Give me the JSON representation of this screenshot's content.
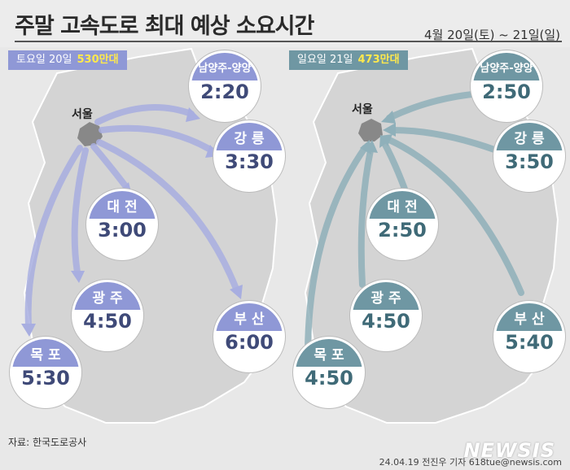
{
  "title": "주말 고속도로 최대 예상 소요시간",
  "date": "4월 20일(토) ~ 21일(일)",
  "saturday": {
    "banner_label": "토요일 20일",
    "banner_value": "530만대",
    "color": "#8f98d6",
    "origin": "서울",
    "destinations": [
      {
        "name": "남양주-양양",
        "time": "2:20"
      },
      {
        "name": "강 릉",
        "time": "3:30"
      },
      {
        "name": "대 전",
        "time": "3:00"
      },
      {
        "name": "광 주",
        "time": "4:50"
      },
      {
        "name": "부 산",
        "time": "6:00"
      },
      {
        "name": "목 포",
        "time": "5:30"
      }
    ]
  },
  "sunday": {
    "banner_label": "일요일 21일",
    "banner_value": "473만대",
    "color": "#6f97a3",
    "origin": "서울",
    "destinations": [
      {
        "name": "남양주-양양",
        "time": "2:50"
      },
      {
        "name": "강 릉",
        "time": "3:50"
      },
      {
        "name": "대 전",
        "time": "2:50"
      },
      {
        "name": "광 주",
        "time": "4:50"
      },
      {
        "name": "부 산",
        "time": "5:40"
      },
      {
        "name": "목 포",
        "time": "4:50"
      }
    ]
  },
  "source": "자료: 한국도로공사",
  "credit": "24.04.19 전진우 기자 618tue@newsis.com",
  "logo": "NEWSIS"
}
